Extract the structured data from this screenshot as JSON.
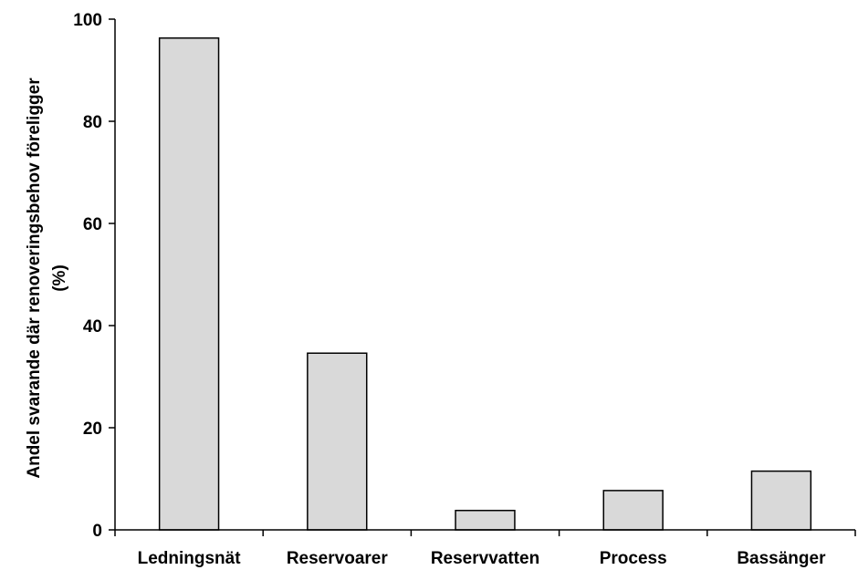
{
  "chart_data": {
    "type": "bar",
    "title": "",
    "xlabel": "",
    "ylabel_lines": [
      "Andel svarande där renoveringsbehov föreligger",
      "(%)"
    ],
    "categories": [
      "Ledningsnät",
      "Reservoarer",
      "Reservvatten",
      "Process",
      "Bassänger"
    ],
    "values": [
      96.3,
      34.6,
      3.8,
      7.7,
      11.5
    ],
    "ylim": [
      0,
      100
    ],
    "yticks": [
      0,
      20,
      40,
      60,
      80,
      100
    ],
    "grid": false,
    "legend": "none",
    "colors": {
      "bar_fill": "#d9d9d9",
      "bar_stroke": "#000000",
      "axis": "#000000"
    }
  }
}
